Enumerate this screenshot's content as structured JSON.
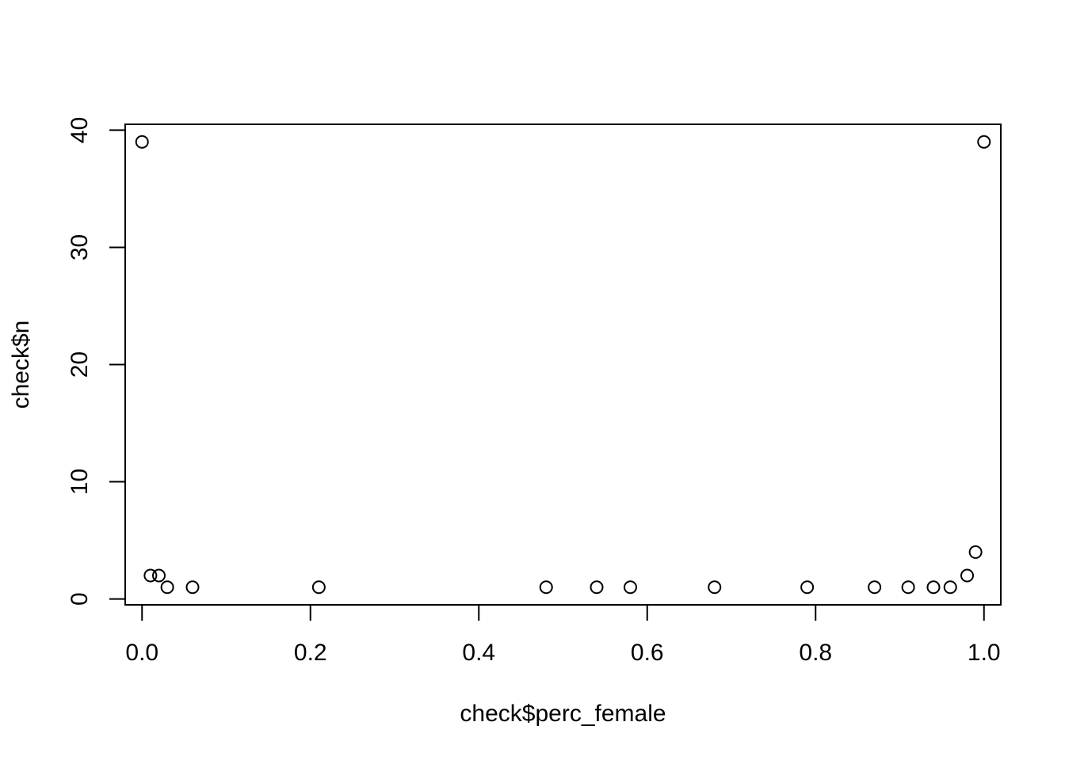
{
  "chart_data": {
    "type": "scatter",
    "title": "",
    "xlabel": "check$perc_female",
    "ylabel": "check$n",
    "xlim": [
      -0.02,
      1.02
    ],
    "ylim": [
      -0.5,
      40.5
    ],
    "x_ticks": [
      0.0,
      0.2,
      0.4,
      0.6,
      0.8,
      1.0
    ],
    "x_tick_labels": [
      "0.0",
      "0.2",
      "0.4",
      "0.6",
      "0.8",
      "1.0"
    ],
    "y_ticks": [
      0,
      10,
      20,
      30,
      40
    ],
    "y_tick_labels": [
      "0",
      "10",
      "20",
      "30",
      "40"
    ],
    "grid": false,
    "marker": "open-circle",
    "points": [
      {
        "x": 0.0,
        "y": 39
      },
      {
        "x": 0.01,
        "y": 2
      },
      {
        "x": 0.02,
        "y": 2
      },
      {
        "x": 0.03,
        "y": 1
      },
      {
        "x": 0.06,
        "y": 1
      },
      {
        "x": 0.21,
        "y": 1
      },
      {
        "x": 0.48,
        "y": 1
      },
      {
        "x": 0.54,
        "y": 1
      },
      {
        "x": 0.58,
        "y": 1
      },
      {
        "x": 0.68,
        "y": 1
      },
      {
        "x": 0.79,
        "y": 1
      },
      {
        "x": 0.87,
        "y": 1
      },
      {
        "x": 0.91,
        "y": 1
      },
      {
        "x": 0.94,
        "y": 1
      },
      {
        "x": 0.96,
        "y": 1
      },
      {
        "x": 0.98,
        "y": 2
      },
      {
        "x": 0.99,
        "y": 4
      },
      {
        "x": 1.0,
        "y": 39
      }
    ]
  }
}
